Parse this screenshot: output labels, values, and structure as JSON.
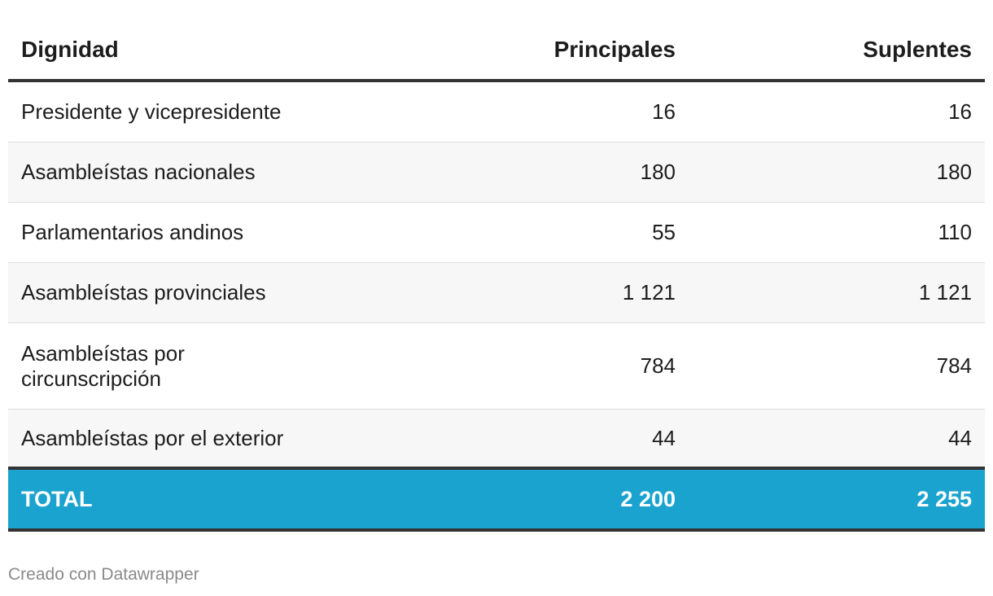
{
  "table": {
    "headers": {
      "dignidad": "Dignidad",
      "principales": "Principales",
      "suplentes": "Suplentes"
    },
    "rows": [
      {
        "dignidad": "Presidente y vicepresidente",
        "principales": "16",
        "suplentes": "16"
      },
      {
        "dignidad": "Asambleístas nacionales",
        "principales": "180",
        "suplentes": "180"
      },
      {
        "dignidad": "Parlamentarios andinos",
        "principales": "55",
        "suplentes": "110"
      },
      {
        "dignidad": "Asambleístas provinciales",
        "principales": "1 121",
        "suplentes": "1 121"
      },
      {
        "dignidad": "Asambleístas por circunscripción",
        "principales": "784",
        "suplentes": "784"
      },
      {
        "dignidad": "Asambleístas por el exterior",
        "principales": "44",
        "suplentes": "44"
      }
    ],
    "total": {
      "dignidad": "TOTAL",
      "principales": "2 200",
      "suplentes": "2 255"
    }
  },
  "colors": {
    "total_row_bg": "#1ba3cf",
    "rule": "#333333",
    "alt_row_bg": "#f7f7f7"
  },
  "footer": {
    "credit": "Creado con Datawrapper"
  }
}
